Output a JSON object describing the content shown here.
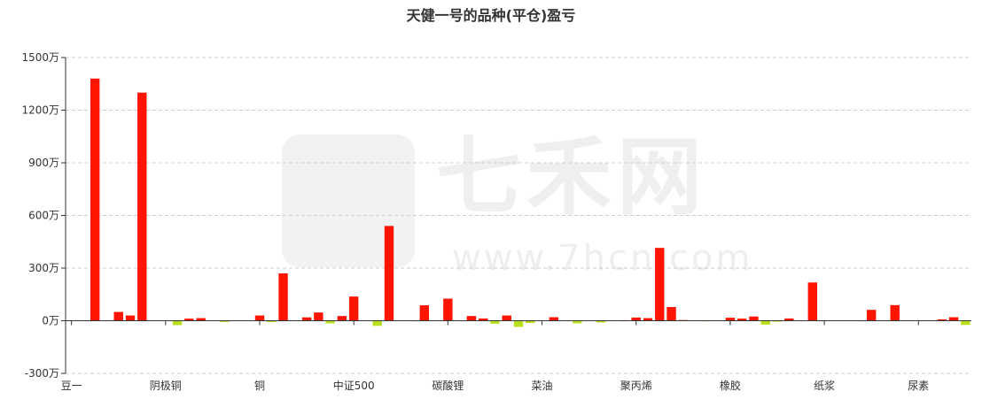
{
  "chart_data": {
    "type": "bar",
    "title": "天健一号的品种(平仓)盈亏",
    "xlabel": "",
    "ylabel": "",
    "ylim": [
      -300,
      1500
    ],
    "yticks": [
      -300,
      0,
      300,
      600,
      900,
      1200,
      1500
    ],
    "ytick_suffix": "万",
    "grid": true,
    "categories": [
      "豆一",
      "",
      "",
      "",
      "",
      "",
      "",
      "",
      "阴极铜",
      "",
      "",
      "",
      "",
      "",
      "",
      "",
      "铜",
      "",
      "",
      "",
      "",
      "",
      "",
      "",
      "中证500",
      "",
      "",
      "",
      "",
      "",
      "",
      "",
      "碳酸锂",
      "",
      "",
      "",
      "",
      "",
      "",
      "",
      "菜油",
      "",
      "",
      "",
      "",
      "",
      "",
      "",
      "聚丙烯",
      "",
      "",
      "",
      "",
      "",
      "",
      "",
      "橡胶",
      "",
      "",
      "",
      "",
      "",
      "",
      "",
      "纸浆",
      "",
      "",
      "",
      "",
      "",
      "",
      "",
      "尿素",
      "",
      "",
      "",
      ""
    ],
    "values": [
      0,
      -2,
      1380,
      0,
      50,
      30,
      1300,
      0,
      2,
      -25,
      12,
      15,
      1,
      -7,
      0,
      1,
      30,
      -8,
      270,
      0,
      19,
      47,
      -15,
      27,
      138,
      2,
      -29,
      540,
      -2,
      -3,
      88,
      -1,
      126,
      0,
      27,
      13,
      -17,
      30,
      -35,
      -13,
      0,
      20,
      0,
      -15,
      0,
      -10,
      -2,
      3,
      18,
      15,
      415,
      78,
      4,
      0,
      -3,
      0,
      17,
      12,
      24,
      -22,
      -5,
      13,
      0,
      218,
      -3,
      2,
      2,
      -3,
      62,
      0,
      89,
      2,
      0,
      -2,
      8,
      20,
      -24
    ],
    "colors": {
      "positive": "#ff1400",
      "negative": "#b8e01c"
    }
  },
  "watermark": {
    "brand": "七禾网",
    "url": "www.7hcn.com"
  }
}
